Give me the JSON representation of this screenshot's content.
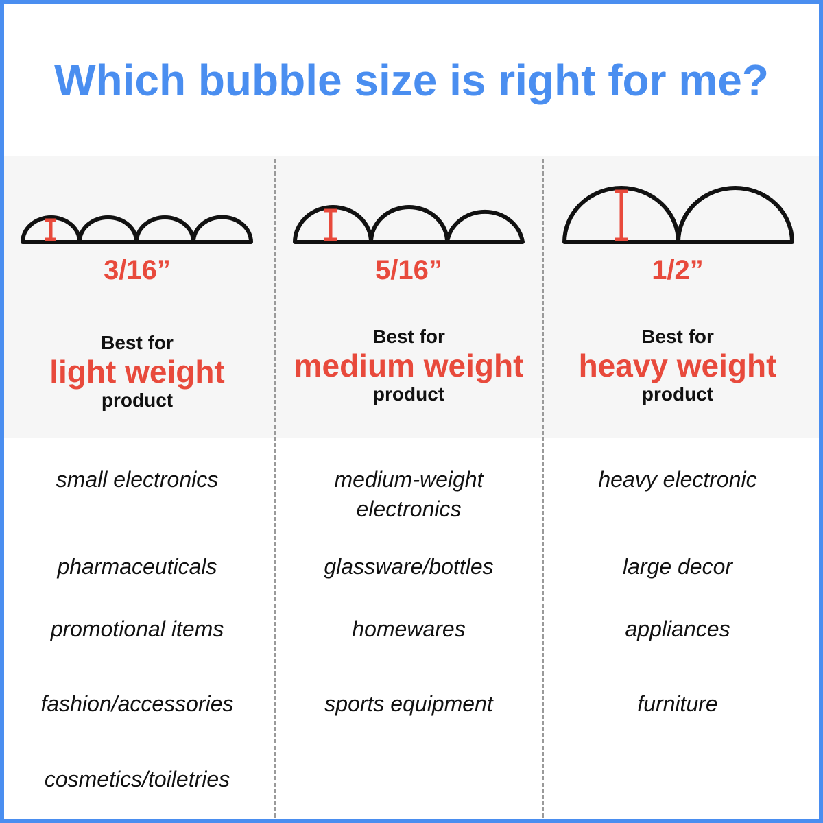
{
  "title": "Which bubble size is right for me?",
  "colors": {
    "accent_blue": "#4a8ef0",
    "accent_red": "#e84a3c",
    "band": "#f6f6f6"
  },
  "columns": [
    {
      "size": "3/16”",
      "best_for": "Best for",
      "weight": "light weight",
      "product": "product",
      "items": [
        "small electronics",
        "pharmaceuticals",
        "promotional items",
        "fashion/accessories",
        "cosmetics/toiletries"
      ]
    },
    {
      "size": "5/16”",
      "best_for": "Best for",
      "weight": "medium weight",
      "product": "product",
      "items": [
        "medium-weight electronics",
        "glassware/bottles",
        "homewares",
        "sports equipment"
      ]
    },
    {
      "size": "1/2”",
      "best_for": "Best for",
      "weight": "heavy weight",
      "product": "product",
      "items": [
        "heavy electronic",
        "large decor",
        "appliances",
        "furniture"
      ]
    }
  ]
}
